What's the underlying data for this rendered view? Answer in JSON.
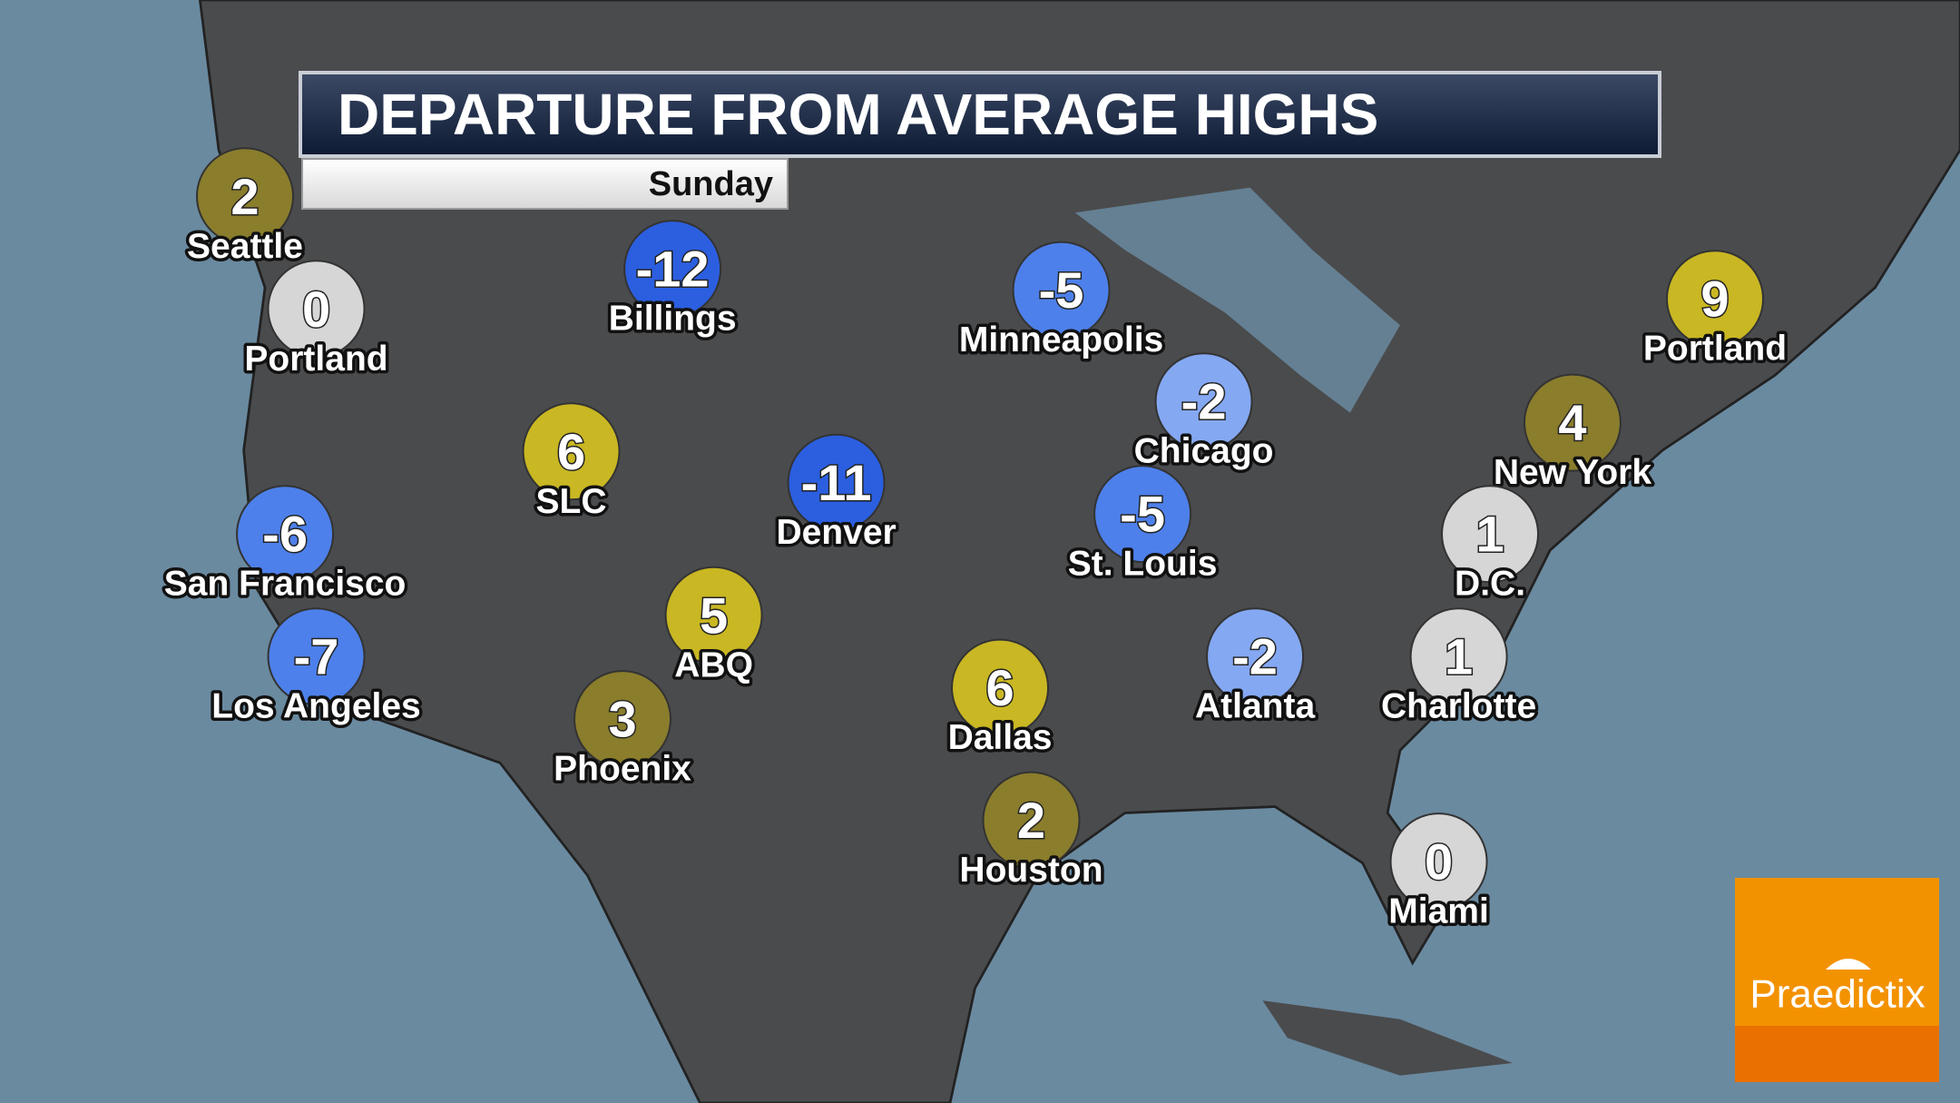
{
  "title": "DEPARTURE FROM AVERAGE HIGHS",
  "day": "Sunday",
  "cities": [
    {
      "name": "Seattle",
      "value": 2,
      "color": "#8a7d2c"
    },
    {
      "name": "Portland",
      "value": 0,
      "color": "#d6d6d6"
    },
    {
      "name": "Billings",
      "value": -12,
      "color": "#2b5fe0"
    },
    {
      "name": "Minneapolis",
      "value": -5,
      "color": "#4d80ea"
    },
    {
      "name": "Portland",
      "value": 9,
      "color": "#c9b723"
    },
    {
      "name": "Chicago",
      "value": -2,
      "color": "#84a8f2"
    },
    {
      "name": "New York",
      "value": 4,
      "color": "#8a7d2c"
    },
    {
      "name": "SLC",
      "value": 6,
      "color": "#c9b723"
    },
    {
      "name": "Denver",
      "value": -11,
      "color": "#2b5fe0"
    },
    {
      "name": "St. Louis",
      "value": -5,
      "color": "#4d80ea"
    },
    {
      "name": "D.C.",
      "value": 1,
      "color": "#d6d6d6"
    },
    {
      "name": "San Francisco",
      "value": -6,
      "color": "#4d80ea"
    },
    {
      "name": "ABQ",
      "value": 5,
      "color": "#c9b723"
    },
    {
      "name": "Los Angeles",
      "value": -7,
      "color": "#4d80ea"
    },
    {
      "name": "Atlanta",
      "value": -2,
      "color": "#84a8f2"
    },
    {
      "name": "Charlotte",
      "value": 1,
      "color": "#d6d6d6"
    },
    {
      "name": "Dallas",
      "value": 6,
      "color": "#c9b723"
    },
    {
      "name": "Phoenix",
      "value": 3,
      "color": "#8a7d2c"
    },
    {
      "name": "Houston",
      "value": 2,
      "color": "#8a7d2c"
    },
    {
      "name": "Miami",
      "value": 0,
      "color": "#d6d6d6"
    }
  ],
  "logo": "Praedictix"
}
